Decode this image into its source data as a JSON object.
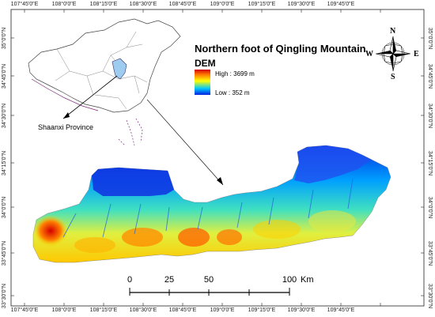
{
  "map": {
    "title": "Northern foot of Qingling Mountain",
    "legend": {
      "heading": "DEM",
      "high_label": "High : 3699 m",
      "low_label": "Low : 352 m",
      "color_high": "#d40000",
      "color_low": "#0020e0"
    },
    "inset_label": "Shaanxi Province",
    "longitude_ticks": [
      "107°45'0\"E",
      "108°0'0\"E",
      "108°15'0\"E",
      "108°30'0\"E",
      "108°45'0\"E",
      "109°0'0\"E",
      "109°15'0\"E",
      "109°30'0\"E",
      "109°45'0\"E"
    ],
    "latitude_ticks": [
      "35°0'0\"N",
      "34°45'0\"N",
      "34°30'0\"N",
      "34°15'0\"N",
      "34°0'0\"N",
      "33°45'0\"N",
      "33°30'0\"N"
    ],
    "scale_bar": {
      "labels": [
        "0",
        "25",
        "50",
        "100"
      ],
      "unit": "Km"
    },
    "north_arrow": {
      "n": "N",
      "s": "S",
      "e": "E",
      "w": "W"
    }
  }
}
